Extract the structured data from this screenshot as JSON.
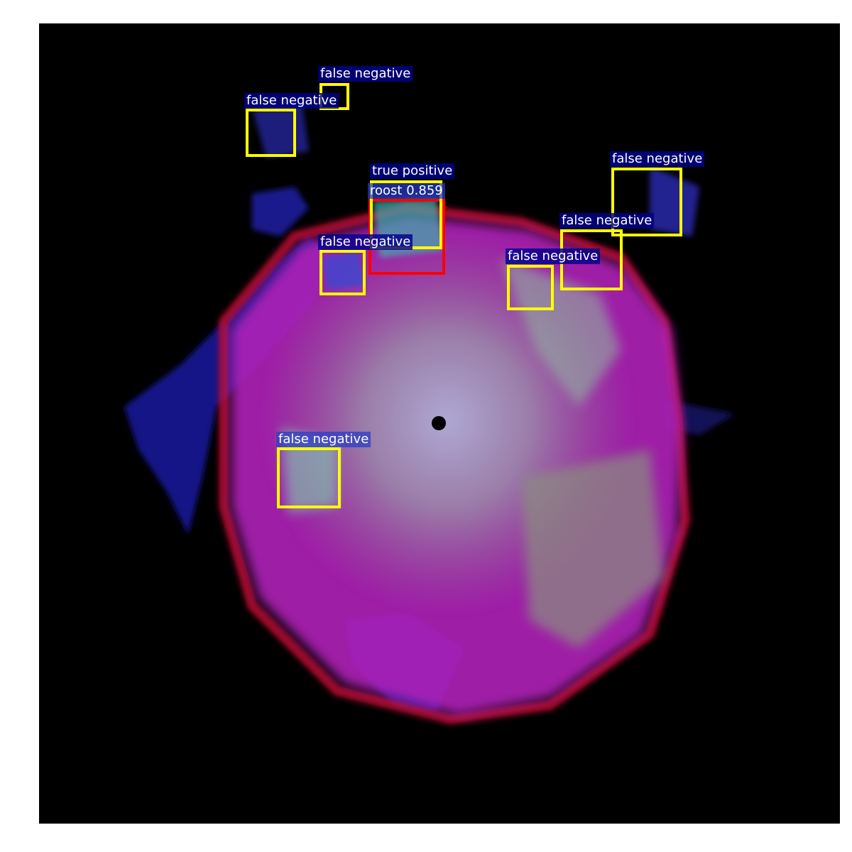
{
  "colors": {
    "ground_truth_box": "#ffff00",
    "prediction_box": "#ff0000",
    "label_bg": "#00008c",
    "label_text": "#ffffff"
  },
  "labels": {
    "fn_top_right_small": "false negative",
    "fn_top_left": "false negative",
    "tp": "true positive",
    "pred": "roost 0.859",
    "fn_center_left": "false negative",
    "fn_right_top": "false negative",
    "fn_right_mid": "false negative",
    "fn_right_low": "false negative",
    "fn_lower_left": "false negative"
  }
}
